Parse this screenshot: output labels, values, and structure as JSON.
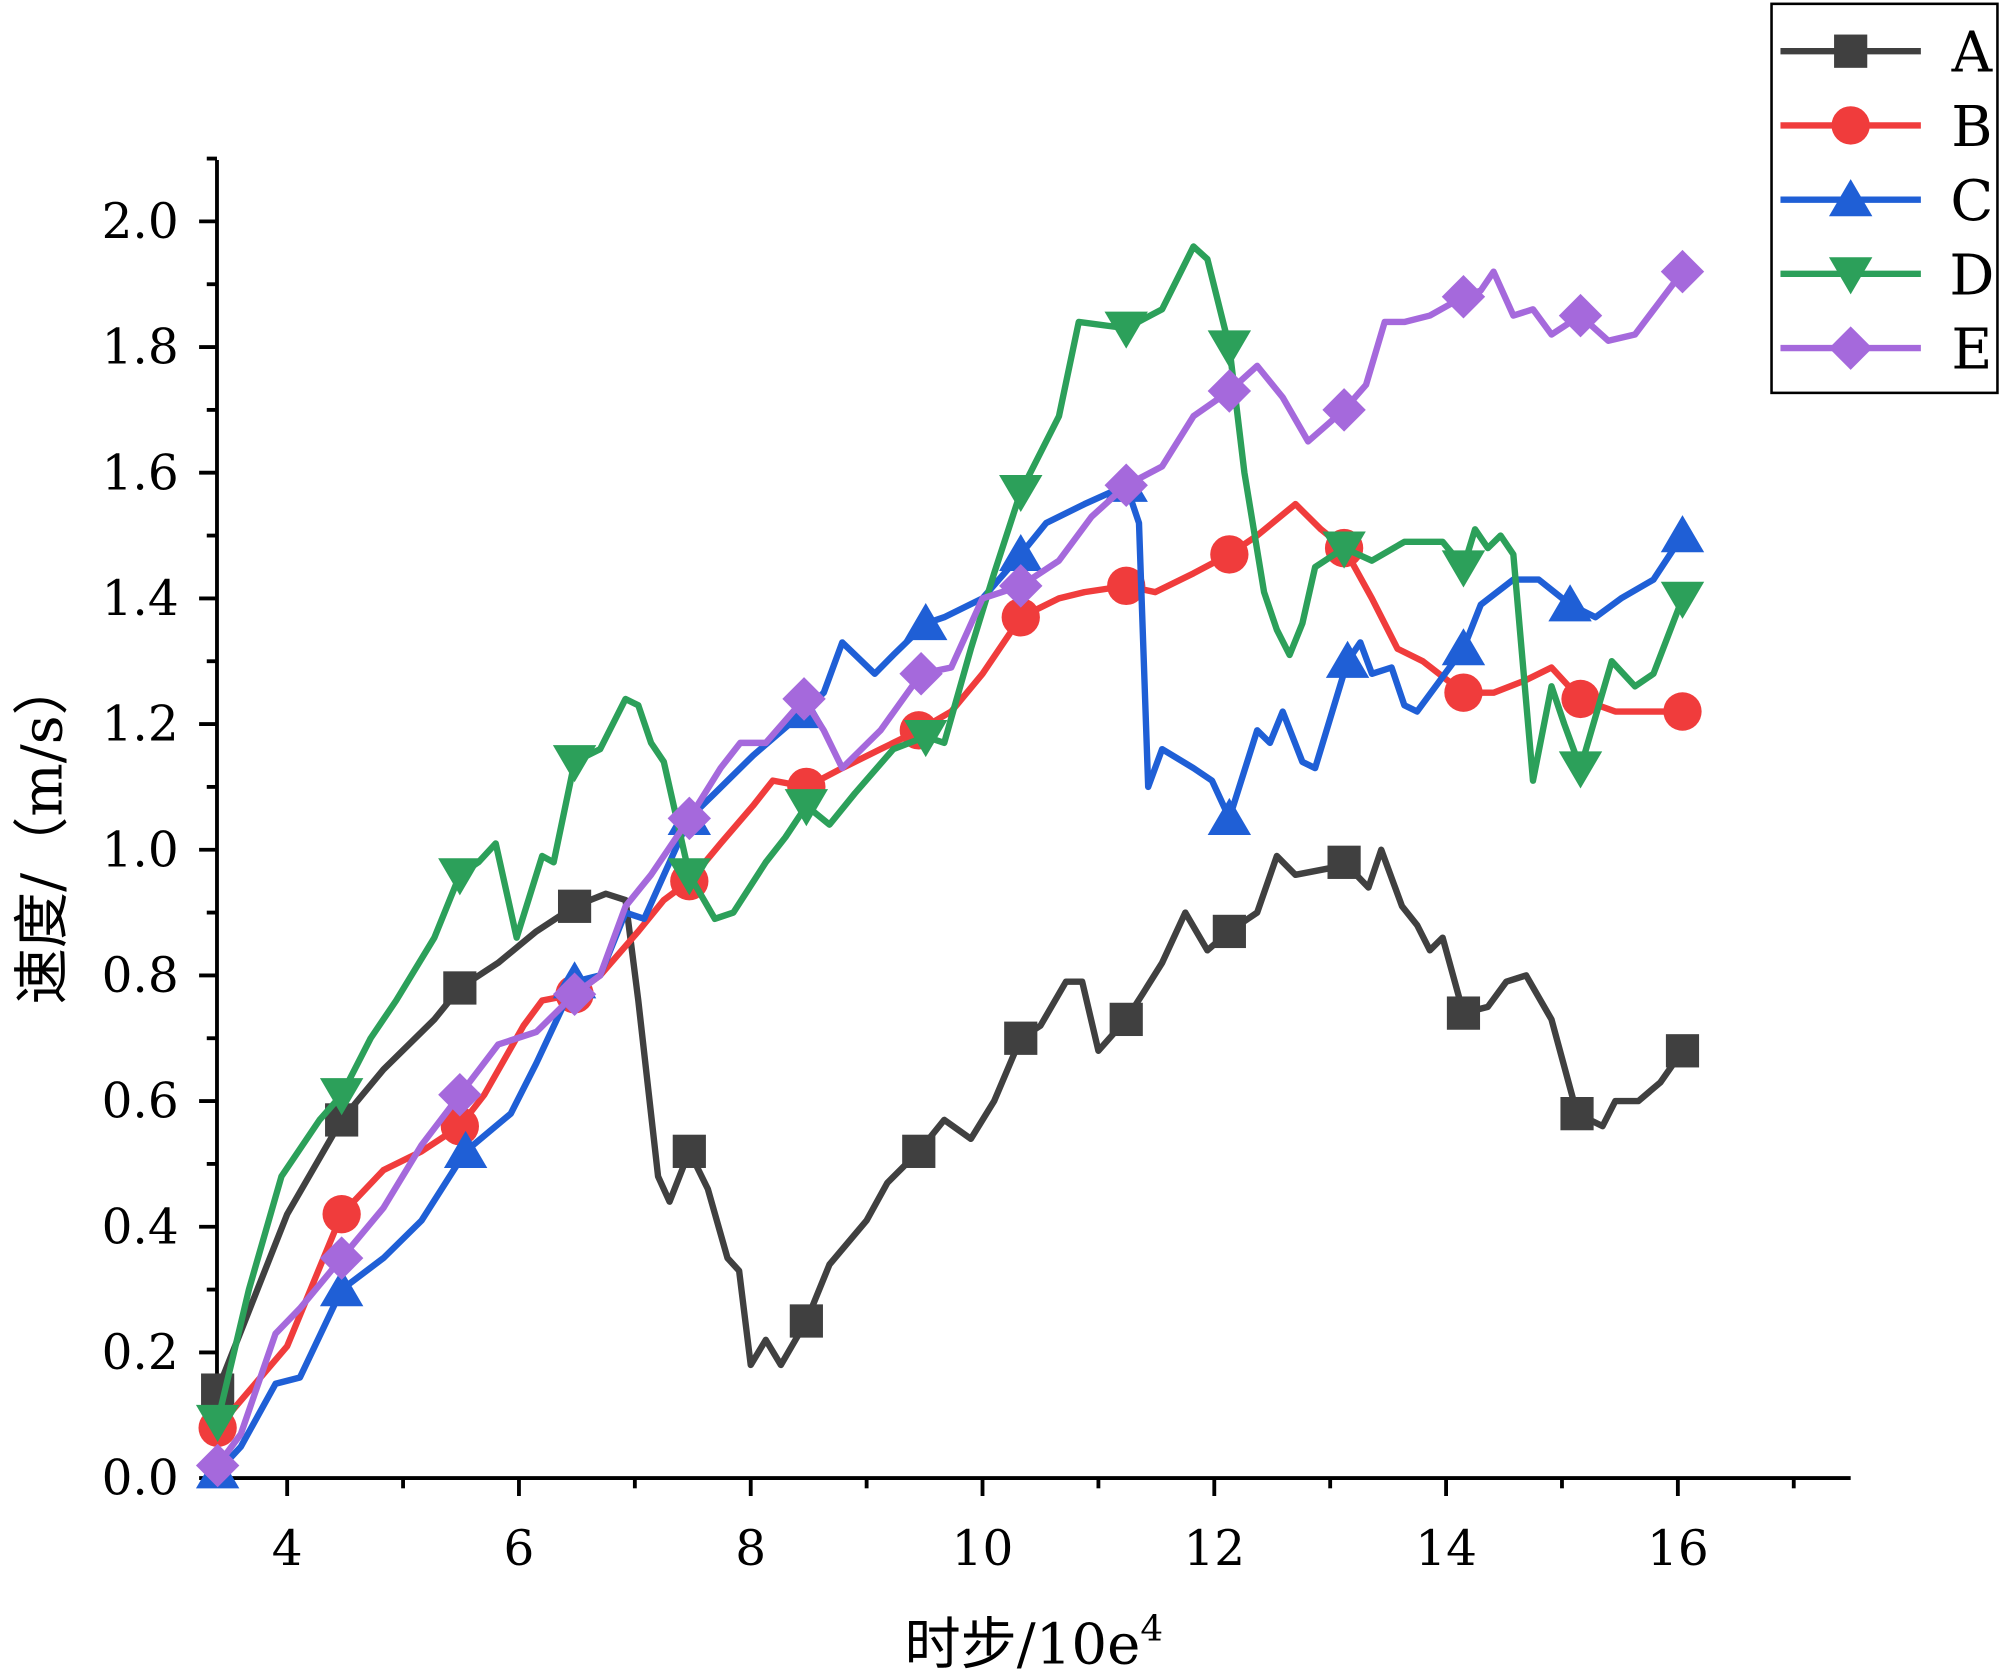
{
  "chart_data": {
    "type": "line",
    "title": "",
    "xlabel": "时步/10e",
    "xlabel_sup": "4",
    "ylabel": "速度/（m/s）",
    "xlim": [
      3.4,
      17.45
    ],
    "ylim": [
      0,
      2.1
    ],
    "xticks": [
      4,
      6,
      8,
      10,
      12,
      14,
      16
    ],
    "xtick_labels": [
      "4",
      "6",
      "8",
      "10",
      "12",
      "14",
      "16"
    ],
    "yticks": [
      0,
      0.2,
      0.4,
      0.6,
      0.8,
      1.0,
      1.2,
      1.4,
      1.6,
      1.8,
      2.0
    ],
    "ytick_labels": [
      "0.0",
      "0.2",
      "0.4",
      "0.6",
      "0.8",
      "1.0",
      "1.2",
      "1.4",
      "1.6",
      "1.8",
      "2.0"
    ],
    "grid": false,
    "legend_position": "top-right",
    "marker_x": [
      3.4,
      4.47,
      5.49,
      6.48,
      7.47,
      8.48,
      9.45,
      10.33,
      11.24,
      12.13,
      13.12,
      14.15,
      15.13,
      16.04
    ],
    "series": [
      {
        "name": "A",
        "color": "#404040",
        "marker": "square",
        "x": [
          3.4,
          4,
          4.47,
          4.83,
          5.27,
          5.49,
          5.82,
          6.15,
          6.48,
          6.75,
          6.92,
          7.03,
          7.2,
          7.3,
          7.47,
          7.63,
          7.8,
          7.9,
          8.0,
          8.13,
          8.26,
          8.48,
          8.68,
          9.0,
          9.18,
          9.45,
          9.67,
          9.9,
          10.1,
          10.33,
          10.5,
          10.72,
          10.86,
          11.0,
          11.24,
          11.38,
          11.55,
          11.75,
          11.94,
          12.13,
          12.37,
          12.54,
          12.7,
          12.98,
          13.12,
          13.33,
          13.44,
          13.62,
          13.75,
          13.86,
          13.97,
          14.15,
          14.36,
          14.52,
          14.69,
          14.91,
          15.13,
          15.35,
          15.46,
          15.66,
          15.85,
          16.04
        ],
        "y": [
          0.14,
          0.42,
          0.57,
          0.65,
          0.73,
          0.78,
          0.82,
          0.87,
          0.91,
          0.93,
          0.92,
          0.76,
          0.48,
          0.44,
          0.52,
          0.46,
          0.35,
          0.33,
          0.18,
          0.22,
          0.18,
          0.25,
          0.34,
          0.41,
          0.47,
          0.52,
          0.57,
          0.54,
          0.6,
          0.7,
          0.72,
          0.79,
          0.79,
          0.68,
          0.73,
          0.77,
          0.82,
          0.9,
          0.84,
          0.87,
          0.9,
          0.99,
          0.96,
          0.97,
          0.98,
          0.94,
          1.0,
          0.91,
          0.88,
          0.84,
          0.86,
          0.74,
          0.75,
          0.79,
          0.8,
          0.73,
          0.58,
          0.56,
          0.6,
          0.6,
          0.63,
          0.68
        ]
      },
      {
        "name": "B",
        "color": "#f03c3c",
        "marker": "circle",
        "x": [
          3.4,
          4,
          4.47,
          4.83,
          5.16,
          5.49,
          5.7,
          6.04,
          6.2,
          6.48,
          6.7,
          7.03,
          7.25,
          7.47,
          7.74,
          8.02,
          8.19,
          8.48,
          8.79,
          9.12,
          9.45,
          9.73,
          10.0,
          10.33,
          10.66,
          10.88,
          11.24,
          11.49,
          11.82,
          12.13,
          12.37,
          12.7,
          12.92,
          13.12,
          13.36,
          13.58,
          13.8,
          14.15,
          14.41,
          14.69,
          14.91,
          15.16,
          15.46,
          15.74,
          16.04
        ],
        "y": [
          0.08,
          0.21,
          0.42,
          0.49,
          0.52,
          0.56,
          0.61,
          0.72,
          0.76,
          0.77,
          0.8,
          0.87,
          0.92,
          0.95,
          1.01,
          1.07,
          1.11,
          1.1,
          1.13,
          1.16,
          1.19,
          1.22,
          1.28,
          1.37,
          1.4,
          1.41,
          1.42,
          1.41,
          1.44,
          1.47,
          1.5,
          1.55,
          1.51,
          1.48,
          1.4,
          1.32,
          1.3,
          1.25,
          1.25,
          1.27,
          1.29,
          1.24,
          1.22,
          1.22,
          1.22
        ]
      },
      {
        "name": "C",
        "color": "#1f5fd6",
        "marker": "triangle-up",
        "x": [
          3.4,
          3.6,
          3.9,
          4.11,
          4.47,
          4.83,
          5.16,
          5.54,
          5.93,
          6.15,
          6.48,
          6.7,
          6.92,
          7.08,
          7.47,
          7.69,
          8.02,
          8.46,
          8.63,
          8.79,
          9.07,
          9.23,
          9.51,
          9.67,
          10.0,
          10.33,
          10.55,
          10.88,
          11.24,
          11.35,
          11.43,
          11.55,
          11.82,
          11.98,
          12.13,
          12.37,
          12.48,
          12.59,
          12.76,
          12.87,
          13.15,
          13.26,
          13.36,
          13.53,
          13.64,
          13.75,
          14.15,
          14.3,
          14.58,
          14.8,
          15.07,
          15.29,
          15.51,
          15.79,
          16.04
        ],
        "y": [
          0.01,
          0.05,
          0.15,
          0.16,
          0.3,
          0.35,
          0.41,
          0.52,
          0.58,
          0.66,
          0.79,
          0.8,
          0.9,
          0.89,
          1.05,
          1.09,
          1.15,
          1.22,
          1.25,
          1.33,
          1.28,
          1.31,
          1.36,
          1.37,
          1.4,
          1.47,
          1.52,
          1.55,
          1.58,
          1.52,
          1.1,
          1.16,
          1.13,
          1.11,
          1.05,
          1.19,
          1.17,
          1.22,
          1.14,
          1.13,
          1.3,
          1.33,
          1.28,
          1.29,
          1.23,
          1.22,
          1.32,
          1.39,
          1.43,
          1.43,
          1.39,
          1.37,
          1.4,
          1.43,
          1.5
        ]
      },
      {
        "name": "D",
        "color": "#2ca05a",
        "marker": "triangle-down",
        "x": [
          3.4,
          3.67,
          3.95,
          4.28,
          4.47,
          4.72,
          4.94,
          5.27,
          5.49,
          5.65,
          5.8,
          5.98,
          6.2,
          6.3,
          6.48,
          6.7,
          6.92,
          7.03,
          7.14,
          7.25,
          7.47,
          7.69,
          7.85,
          8.13,
          8.3,
          8.48,
          8.68,
          8.9,
          9.23,
          9.51,
          9.67,
          9.9,
          10.1,
          10.33,
          10.66,
          10.83,
          11.24,
          11.55,
          11.82,
          11.94,
          12.13,
          12.26,
          12.43,
          12.54,
          12.65,
          12.76,
          12.87,
          13.12,
          13.36,
          13.64,
          13.97,
          14.15,
          14.25,
          14.36,
          14.47,
          14.58,
          14.75,
          14.91,
          15.02,
          15.16,
          15.43,
          15.63,
          15.79,
          16.04
        ],
        "y": [
          0.09,
          0.3,
          0.48,
          0.57,
          0.61,
          0.7,
          0.76,
          0.86,
          0.96,
          0.98,
          1.01,
          0.86,
          0.99,
          0.98,
          1.14,
          1.16,
          1.24,
          1.23,
          1.17,
          1.14,
          0.96,
          0.89,
          0.9,
          0.98,
          1.02,
          1.07,
          1.04,
          1.09,
          1.16,
          1.18,
          1.17,
          1.32,
          1.44,
          1.57,
          1.69,
          1.84,
          1.83,
          1.86,
          1.96,
          1.94,
          1.8,
          1.6,
          1.41,
          1.35,
          1.31,
          1.36,
          1.45,
          1.48,
          1.46,
          1.49,
          1.49,
          1.45,
          1.51,
          1.48,
          1.5,
          1.47,
          1.11,
          1.26,
          1.2,
          1.13,
          1.3,
          1.26,
          1.28,
          1.4
        ]
      },
      {
        "name": "E",
        "color": "#a569dc",
        "marker": "diamond",
        "x": [
          3.4,
          3.6,
          3.9,
          4.11,
          4.47,
          4.83,
          5.16,
          5.49,
          5.82,
          6.15,
          6.48,
          6.7,
          6.92,
          7.14,
          7.47,
          7.74,
          7.91,
          8.13,
          8.46,
          8.63,
          8.79,
          9.12,
          9.47,
          9.73,
          10.0,
          10.33,
          10.66,
          10.94,
          11.24,
          11.55,
          11.82,
          12.13,
          12.37,
          12.59,
          12.81,
          13.12,
          13.31,
          13.47,
          13.64,
          13.86,
          14.15,
          14.3,
          14.41,
          14.58,
          14.75,
          14.91,
          15.16,
          15.4,
          15.63,
          16.04
        ],
        "y": [
          0.02,
          0.07,
          0.23,
          0.27,
          0.35,
          0.43,
          0.53,
          0.61,
          0.69,
          0.71,
          0.77,
          0.8,
          0.91,
          0.96,
          1.05,
          1.13,
          1.17,
          1.17,
          1.24,
          1.19,
          1.13,
          1.19,
          1.28,
          1.29,
          1.4,
          1.42,
          1.46,
          1.53,
          1.58,
          1.61,
          1.69,
          1.73,
          1.77,
          1.72,
          1.65,
          1.7,
          1.74,
          1.84,
          1.84,
          1.85,
          1.88,
          1.89,
          1.92,
          1.85,
          1.86,
          1.82,
          1.85,
          1.81,
          1.82,
          1.92
        ]
      }
    ]
  }
}
